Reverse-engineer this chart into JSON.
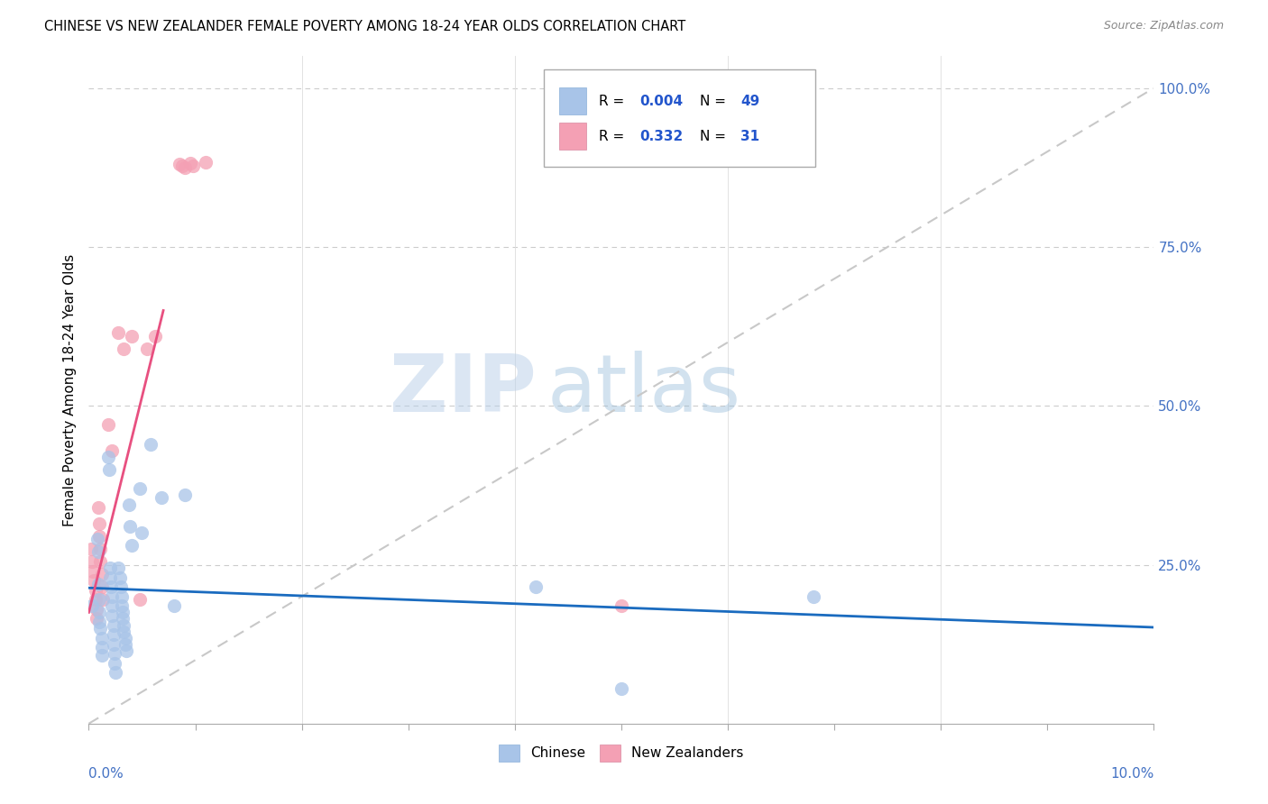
{
  "title": "CHINESE VS NEW ZEALANDER FEMALE POVERTY AMONG 18-24 YEAR OLDS CORRELATION CHART",
  "source": "Source: ZipAtlas.com",
  "ylabel": "Female Poverty Among 18-24 Year Olds",
  "legend1_r": "0.004",
  "legend1_n": "49",
  "legend2_r": "0.332",
  "legend2_n": "31",
  "chinese_color": "#a8c4e8",
  "nz_color": "#f4a0b4",
  "chinese_line_color": "#1a6bbf",
  "nz_line_color": "#e85080",
  "diagonal_color": "#c8c8c8",
  "watermark_zip": "ZIP",
  "watermark_atlas": "atlas",
  "chinese_points": [
    [
      0.0003,
      0.185
    ],
    [
      0.0008,
      0.29
    ],
    [
      0.0009,
      0.22
    ],
    [
      0.0009,
      0.27
    ],
    [
      0.001,
      0.195
    ],
    [
      0.001,
      0.175
    ],
    [
      0.001,
      0.16
    ],
    [
      0.0011,
      0.15
    ],
    [
      0.0012,
      0.135
    ],
    [
      0.0012,
      0.12
    ],
    [
      0.0012,
      0.108
    ],
    [
      0.0018,
      0.42
    ],
    [
      0.0019,
      0.4
    ],
    [
      0.002,
      0.245
    ],
    [
      0.002,
      0.23
    ],
    [
      0.0021,
      0.215
    ],
    [
      0.0022,
      0.2
    ],
    [
      0.0022,
      0.185
    ],
    [
      0.0022,
      0.17
    ],
    [
      0.0023,
      0.155
    ],
    [
      0.0023,
      0.14
    ],
    [
      0.0023,
      0.125
    ],
    [
      0.0024,
      0.11
    ],
    [
      0.0024,
      0.095
    ],
    [
      0.0025,
      0.08
    ],
    [
      0.0028,
      0.245
    ],
    [
      0.0029,
      0.23
    ],
    [
      0.003,
      0.215
    ],
    [
      0.0031,
      0.2
    ],
    [
      0.0031,
      0.185
    ],
    [
      0.0032,
      0.175
    ],
    [
      0.0032,
      0.165
    ],
    [
      0.0033,
      0.155
    ],
    [
      0.0033,
      0.145
    ],
    [
      0.0034,
      0.135
    ],
    [
      0.0034,
      0.125
    ],
    [
      0.0035,
      0.115
    ],
    [
      0.0038,
      0.345
    ],
    [
      0.0039,
      0.31
    ],
    [
      0.004,
      0.28
    ],
    [
      0.0048,
      0.37
    ],
    [
      0.005,
      0.3
    ],
    [
      0.0058,
      0.44
    ],
    [
      0.0068,
      0.355
    ],
    [
      0.008,
      0.185
    ],
    [
      0.009,
      0.36
    ],
    [
      0.042,
      0.215
    ],
    [
      0.05,
      0.055
    ],
    [
      0.068,
      0.2
    ]
  ],
  "nz_points": [
    [
      0.0002,
      0.275
    ],
    [
      0.0003,
      0.255
    ],
    [
      0.0004,
      0.24
    ],
    [
      0.0005,
      0.225
    ],
    [
      0.0006,
      0.21
    ],
    [
      0.0006,
      0.195
    ],
    [
      0.0007,
      0.18
    ],
    [
      0.0007,
      0.165
    ],
    [
      0.0009,
      0.34
    ],
    [
      0.001,
      0.315
    ],
    [
      0.001,
      0.295
    ],
    [
      0.0011,
      0.275
    ],
    [
      0.0011,
      0.255
    ],
    [
      0.0012,
      0.235
    ],
    [
      0.0012,
      0.215
    ],
    [
      0.0013,
      0.195
    ],
    [
      0.0018,
      0.47
    ],
    [
      0.0022,
      0.43
    ],
    [
      0.0028,
      0.615
    ],
    [
      0.0033,
      0.59
    ],
    [
      0.004,
      0.61
    ],
    [
      0.0048,
      0.195
    ],
    [
      0.0055,
      0.59
    ],
    [
      0.0062,
      0.61
    ],
    [
      0.0085,
      0.88
    ],
    [
      0.0088,
      0.878
    ],
    [
      0.009,
      0.875
    ],
    [
      0.0095,
      0.882
    ],
    [
      0.0098,
      0.878
    ],
    [
      0.011,
      0.883
    ],
    [
      0.05,
      0.185
    ]
  ],
  "nz_line_x_start": 0.0,
  "nz_line_x_end": 0.007,
  "x_min": 0.0,
  "x_max": 0.1,
  "y_min": 0.0,
  "y_max": 1.05
}
